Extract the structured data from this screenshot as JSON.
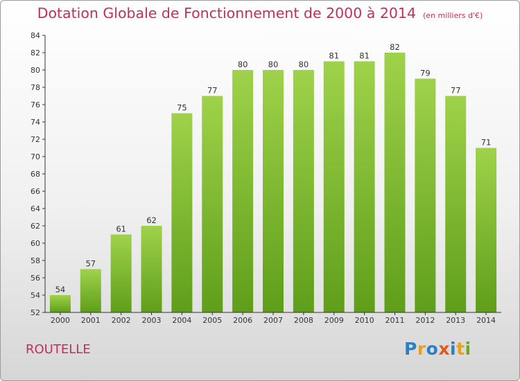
{
  "title": "Dotation Globale de Fonctionnement de 2000 à 2014",
  "subtitle": "(en milliers d'€)",
  "commune": "ROUTELLE",
  "logo": {
    "letters": [
      "P",
      "r",
      "o",
      "x",
      "i",
      "t",
      "i"
    ],
    "colors": [
      "#2b7fc4",
      "#e8a020",
      "#2b7fc4",
      "#e05a1a",
      "#2b7fc4",
      "#e8a020",
      "#6aa82a"
    ]
  },
  "colors": {
    "bar_light": "#9fd24a",
    "bar_dark": "#5f9e1a",
    "title": "#c0305a"
  },
  "chart_data": {
    "type": "bar",
    "categories": [
      "2000",
      "2001",
      "2002",
      "2003",
      "2004",
      "2005",
      "2006",
      "2007",
      "2008",
      "2009",
      "2010",
      "2011",
      "2012",
      "2013",
      "2014"
    ],
    "values": [
      54,
      57,
      61,
      62,
      75,
      77,
      80,
      80,
      80,
      81,
      81,
      82,
      79,
      77,
      71
    ],
    "ylim": [
      52,
      84
    ],
    "yticks": [
      52,
      54,
      56,
      58,
      60,
      62,
      64,
      66,
      68,
      70,
      72,
      74,
      76,
      78,
      80,
      82,
      84
    ],
    "grid": false,
    "data_labels": true
  }
}
